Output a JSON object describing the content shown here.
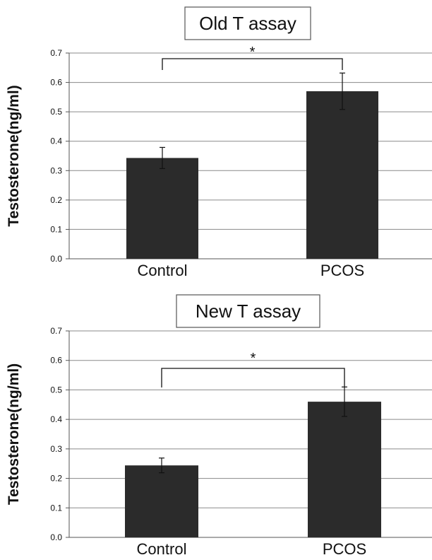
{
  "chart_data": [
    {
      "type": "bar",
      "title": "Old T assay",
      "ylabel": "Testosterone(ng/ml)",
      "categories": [
        "Control",
        "PCOS"
      ],
      "values": [
        0.343,
        0.57
      ],
      "errors": [
        0.036,
        0.062
      ],
      "ylim": [
        0,
        0.7
      ],
      "yticks": [
        "0.0",
        "0.1",
        "0.2",
        "0.3",
        "0.4",
        "0.5",
        "0.6",
        "0.7"
      ],
      "grid": true,
      "significance": {
        "between": [
          "Control",
          "PCOS"
        ],
        "label": "*"
      },
      "colors": {
        "bar": "#2b2b2b",
        "grid": "#8a8a8a"
      }
    },
    {
      "type": "bar",
      "title": "New T assay",
      "ylabel": "Testosterone(ng/ml)",
      "categories": [
        "Control",
        "PCOS"
      ],
      "values": [
        0.244,
        0.46
      ],
      "errors": [
        0.025,
        0.05
      ],
      "ylim": [
        0,
        0.7
      ],
      "yticks": [
        "0.0",
        "0.1",
        "0.2",
        "0.3",
        "0.4",
        "0.5",
        "0.6",
        "0.7"
      ],
      "grid": true,
      "significance": {
        "between": [
          "Control",
          "PCOS"
        ],
        "label": "*"
      },
      "colors": {
        "bar": "#2b2b2b",
        "grid": "#8a8a8a"
      }
    }
  ]
}
